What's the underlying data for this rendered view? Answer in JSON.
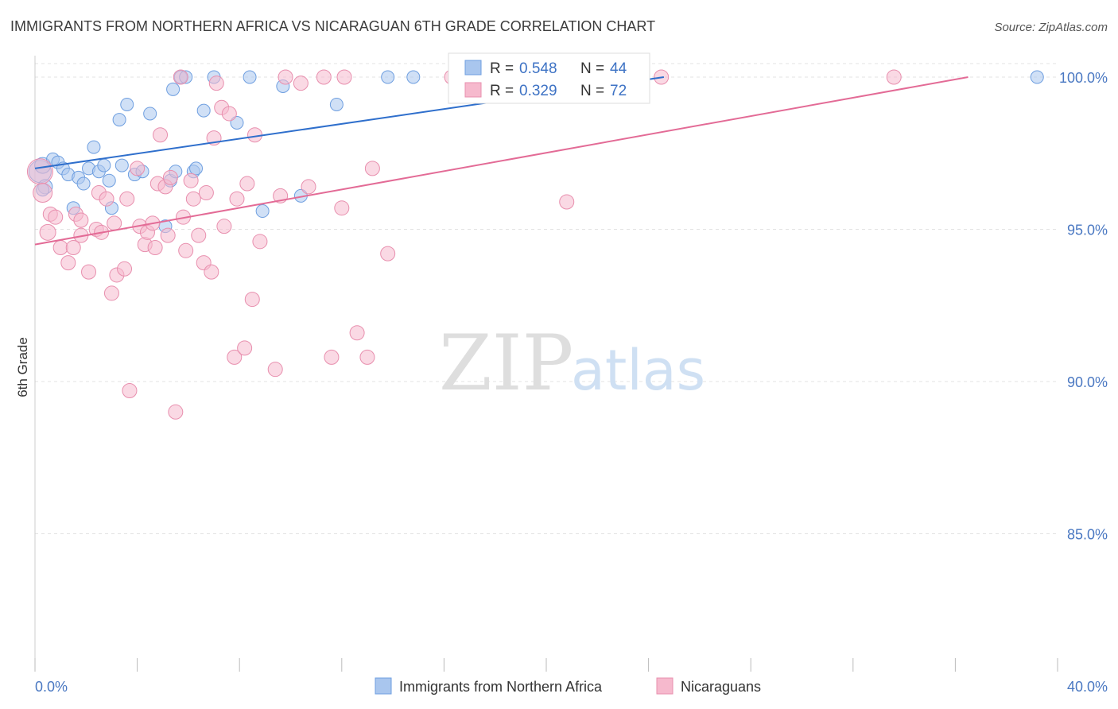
{
  "title": "IMMIGRANTS FROM NORTHERN AFRICA VS NICARAGUAN 6TH GRADE CORRELATION CHART",
  "source": "Source: ZipAtlas.com",
  "watermark": {
    "zip": "ZIP",
    "atlas": "atlas"
  },
  "colors": {
    "blue_fill": "#a9c6ee",
    "blue_stroke": "#6f9fe0",
    "blue_line": "#2f6fcc",
    "pink_fill": "#f6b9cd",
    "pink_stroke": "#e88fae",
    "pink_line": "#e36b96",
    "grid": "#e3e3e3",
    "axis_text": "#4a78c2"
  },
  "legend": {
    "series1": {
      "r_label": "R =",
      "r_value": "0.548",
      "n_label": "N =",
      "n_value": "44"
    },
    "series2": {
      "r_label": "R =",
      "r_value": "0.329",
      "n_label": "N =",
      "n_value": "72"
    }
  },
  "chart_data": {
    "type": "scatter",
    "title": "IMMIGRANTS FROM NORTHERN AFRICA VS NICARAGUAN 6TH GRADE CORRELATION CHART",
    "xlabel": "",
    "ylabel": "6th Grade",
    "xlim": [
      0,
      40
    ],
    "ylim": [
      80.5,
      100.8
    ],
    "x_tick_labels": [
      {
        "value": 0,
        "label": "0.0%"
      },
      {
        "value": 40,
        "label": "40.0%"
      }
    ],
    "y_tick_labels": [
      {
        "value": 100,
        "label": "100.0%"
      },
      {
        "value": 95,
        "label": "95.0%"
      },
      {
        "value": 90,
        "label": "90.0%"
      },
      {
        "value": 85,
        "label": "85.0%"
      }
    ],
    "x_minor_ticks": [
      0,
      4,
      8,
      12,
      16,
      20,
      24,
      28,
      32,
      36,
      40
    ],
    "grid": true,
    "legend_position": "top-center",
    "series": [
      {
        "name": "Immigrants from Northern Africa",
        "color": "blue",
        "trend": [
          [
            0,
            97.0
          ],
          [
            24.6,
            100.0
          ]
        ],
        "points": [
          [
            0.2,
            96.9,
            14
          ],
          [
            0.3,
            97.1,
            10
          ],
          [
            0.4,
            96.4,
            9
          ],
          [
            0.7,
            97.3,
            8
          ],
          [
            0.9,
            97.2,
            8
          ],
          [
            1.1,
            97.0,
            8
          ],
          [
            1.3,
            96.8,
            8
          ],
          [
            1.7,
            96.7,
            8
          ],
          [
            1.9,
            96.5,
            8
          ],
          [
            2.3,
            97.7,
            8
          ],
          [
            2.1,
            97.0,
            8
          ],
          [
            2.5,
            96.9,
            8
          ],
          [
            2.7,
            97.1,
            8
          ],
          [
            2.9,
            96.6,
            8
          ],
          [
            3.0,
            95.7,
            8
          ],
          [
            1.5,
            95.7,
            8
          ],
          [
            3.3,
            98.6,
            8
          ],
          [
            3.4,
            97.1,
            8
          ],
          [
            3.6,
            99.1,
            8
          ],
          [
            3.9,
            96.8,
            8
          ],
          [
            4.2,
            96.9,
            8
          ],
          [
            4.5,
            98.8,
            8
          ],
          [
            5.1,
            95.1,
            8
          ],
          [
            5.3,
            96.6,
            8
          ],
          [
            5.5,
            96.9,
            8
          ],
          [
            5.4,
            99.6,
            8
          ],
          [
            5.7,
            100.0,
            8
          ],
          [
            5.9,
            100.0,
            8
          ],
          [
            6.2,
            96.9,
            8
          ],
          [
            6.3,
            97.0,
            8
          ],
          [
            6.6,
            98.9,
            8
          ],
          [
            7.0,
            100.0,
            8
          ],
          [
            7.9,
            98.5,
            8
          ],
          [
            8.4,
            100.0,
            8
          ],
          [
            8.9,
            95.6,
            8
          ],
          [
            9.7,
            99.7,
            8
          ],
          [
            10.4,
            96.1,
            8
          ],
          [
            11.8,
            99.1,
            8
          ],
          [
            13.8,
            100.0,
            8
          ],
          [
            14.8,
            100.0,
            8
          ],
          [
            17.1,
            100.0,
            8
          ],
          [
            22.0,
            100.0,
            8
          ],
          [
            39.2,
            100.0,
            8
          ],
          [
            0.3,
            96.3,
            8
          ]
        ]
      },
      {
        "name": "Nicaraguans",
        "color": "pink",
        "trend": [
          [
            0,
            94.5
          ],
          [
            36.5,
            100.0
          ]
        ],
        "points": [
          [
            0.2,
            96.9,
            16
          ],
          [
            0.3,
            96.2,
            12
          ],
          [
            0.5,
            94.9,
            10
          ],
          [
            0.6,
            95.5,
            9
          ],
          [
            0.8,
            95.4,
            9
          ],
          [
            1.0,
            94.4,
            9
          ],
          [
            1.3,
            93.9,
            9
          ],
          [
            1.5,
            94.4,
            9
          ],
          [
            1.6,
            95.5,
            9
          ],
          [
            1.8,
            95.3,
            9
          ],
          [
            1.8,
            94.8,
            9
          ],
          [
            2.1,
            93.6,
            9
          ],
          [
            2.4,
            95.0,
            9
          ],
          [
            2.5,
            96.2,
            9
          ],
          [
            2.6,
            94.9,
            9
          ],
          [
            2.8,
            96.0,
            9
          ],
          [
            3.0,
            92.9,
            9
          ],
          [
            3.1,
            95.2,
            9
          ],
          [
            3.2,
            93.5,
            9
          ],
          [
            3.5,
            93.7,
            9
          ],
          [
            3.6,
            96.0,
            9
          ],
          [
            3.7,
            89.7,
            9
          ],
          [
            4.0,
            97.0,
            9
          ],
          [
            4.1,
            95.1,
            9
          ],
          [
            4.3,
            94.5,
            9
          ],
          [
            4.4,
            94.9,
            9
          ],
          [
            4.6,
            95.2,
            9
          ],
          [
            4.7,
            94.4,
            9
          ],
          [
            4.8,
            96.5,
            9
          ],
          [
            4.9,
            98.1,
            9
          ],
          [
            5.1,
            96.4,
            9
          ],
          [
            5.2,
            94.8,
            9
          ],
          [
            5.3,
            96.7,
            9
          ],
          [
            5.5,
            89.0,
            9
          ],
          [
            5.7,
            100.0,
            9
          ],
          [
            5.8,
            95.4,
            9
          ],
          [
            5.9,
            94.3,
            9
          ],
          [
            6.1,
            96.6,
            9
          ],
          [
            6.2,
            96.0,
            9
          ],
          [
            6.4,
            94.8,
            9
          ],
          [
            6.6,
            93.9,
            9
          ],
          [
            6.7,
            96.2,
            9
          ],
          [
            6.9,
            93.6,
            9
          ],
          [
            7.0,
            98.0,
            9
          ],
          [
            7.1,
            99.8,
            9
          ],
          [
            7.3,
            99.0,
            9
          ],
          [
            7.4,
            95.1,
            9
          ],
          [
            7.6,
            98.8,
            9
          ],
          [
            7.8,
            90.8,
            9
          ],
          [
            7.9,
            96.0,
            9
          ],
          [
            8.2,
            91.1,
            9
          ],
          [
            8.3,
            96.5,
            9
          ],
          [
            8.6,
            98.1,
            9
          ],
          [
            8.5,
            92.7,
            9
          ],
          [
            8.8,
            94.6,
            9
          ],
          [
            9.4,
            90.4,
            9
          ],
          [
            9.6,
            96.1,
            9
          ],
          [
            9.8,
            100.0,
            9
          ],
          [
            10.4,
            99.8,
            9
          ],
          [
            10.7,
            96.4,
            9
          ],
          [
            11.3,
            100.0,
            9
          ],
          [
            11.6,
            90.8,
            9
          ],
          [
            12.0,
            95.7,
            9
          ],
          [
            12.1,
            100.0,
            9
          ],
          [
            12.6,
            91.6,
            9
          ],
          [
            13.0,
            90.8,
            9
          ],
          [
            13.2,
            97.0,
            9
          ],
          [
            13.8,
            94.2,
            9
          ],
          [
            16.3,
            100.0,
            9
          ],
          [
            20.8,
            95.9,
            9
          ],
          [
            24.5,
            100.0,
            9
          ],
          [
            33.6,
            100.0,
            9
          ]
        ]
      }
    ]
  },
  "bottom_legend": {
    "items": [
      {
        "label": "Immigrants from Northern Africa"
      },
      {
        "label": "Nicaraguans"
      }
    ]
  }
}
